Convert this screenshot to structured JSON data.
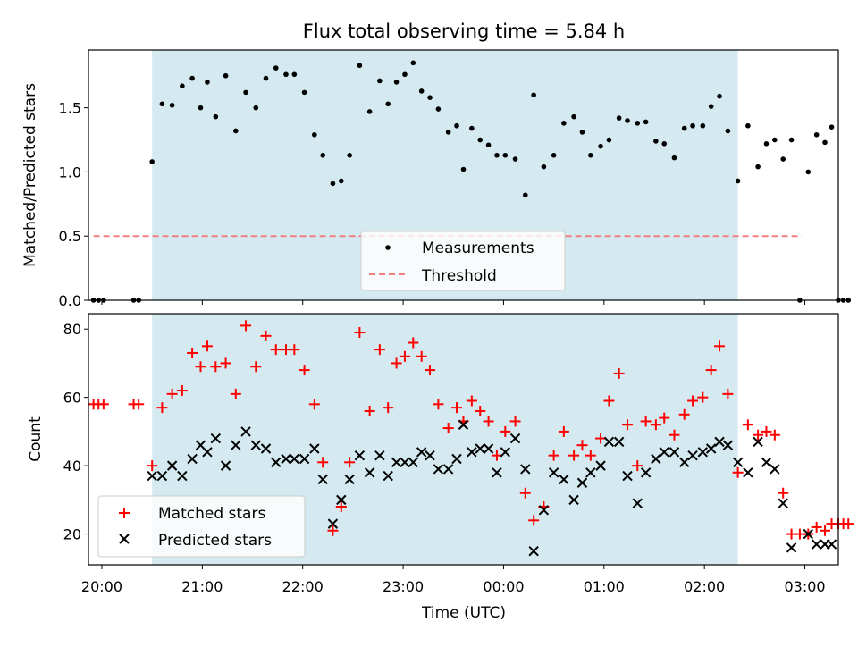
{
  "figure": {
    "title": "Flux total observing time = 5.84 h"
  },
  "chart_data": [
    {
      "type": "scatter",
      "panel": "top",
      "ylabel": "Matched/Predicted stars",
      "xlabel": "",
      "xlim": [
        "19:52",
        "03:20"
      ],
      "ylim": [
        0,
        1.95
      ],
      "yticks": [
        0.0,
        0.5,
        1.0,
        1.5
      ],
      "ytick_labels": [
        "0.0",
        "0.5",
        "1.0",
        "1.5"
      ],
      "shaded_interval": {
        "start": "20:30",
        "end": "02:20",
        "color": "#d4eaf0"
      },
      "legend": {
        "position": "lower center",
        "entries": [
          "Measurements",
          "Threshold"
        ]
      },
      "threshold": {
        "name": "Threshold",
        "y": 0.5,
        "x": [
          "19:55",
          "02:58"
        ],
        "color": "#f08080",
        "style": "dashed"
      },
      "series": [
        {
          "name": "Measurements",
          "marker": "dot",
          "color": "#000000",
          "points": [
            [
              "19:55",
              0
            ],
            [
              "19:58",
              0
            ],
            [
              "20:01",
              0
            ],
            [
              "20:19",
              0
            ],
            [
              "20:22",
              0
            ],
            [
              "20:30",
              1.08
            ],
            [
              "20:36",
              1.53
            ],
            [
              "20:42",
              1.52
            ],
            [
              "20:48",
              1.67
            ],
            [
              "20:54",
              1.73
            ],
            [
              "20:59",
              1.5
            ],
            [
              "21:03",
              1.7
            ],
            [
              "21:08",
              1.43
            ],
            [
              "21:14",
              1.75
            ],
            [
              "21:20",
              1.32
            ],
            [
              "21:26",
              1.62
            ],
            [
              "21:32",
              1.5
            ],
            [
              "21:38",
              1.73
            ],
            [
              "21:44",
              1.81
            ],
            [
              "21:50",
              1.76
            ],
            [
              "21:55",
              1.76
            ],
            [
              "22:01",
              1.62
            ],
            [
              "22:07",
              1.29
            ],
            [
              "22:12",
              1.13
            ],
            [
              "22:18",
              0.91
            ],
            [
              "22:23",
              0.93
            ],
            [
              "22:28",
              1.13
            ],
            [
              "22:34",
              1.83
            ],
            [
              "22:40",
              1.47
            ],
            [
              "22:46",
              1.71
            ],
            [
              "22:51",
              1.53
            ],
            [
              "22:56",
              1.7
            ],
            [
              "23:01",
              1.76
            ],
            [
              "23:06",
              1.85
            ],
            [
              "23:11",
              1.63
            ],
            [
              "23:16",
              1.58
            ],
            [
              "23:21",
              1.49
            ],
            [
              "23:27",
              1.31
            ],
            [
              "23:32",
              1.36
            ],
            [
              "23:36",
              1.02
            ],
            [
              "23:41",
              1.34
            ],
            [
              "23:46",
              1.25
            ],
            [
              "23:51",
              1.21
            ],
            [
              "23:56",
              1.13
            ],
            [
              "00:01",
              1.13
            ],
            [
              "00:07",
              1.1
            ],
            [
              "00:13",
              0.82
            ],
            [
              "00:18",
              1.6
            ],
            [
              "00:24",
              1.04
            ],
            [
              "00:30",
              1.13
            ],
            [
              "00:36",
              1.38
            ],
            [
              "00:42",
              1.43
            ],
            [
              "00:47",
              1.31
            ],
            [
              "00:52",
              1.13
            ],
            [
              "00:58",
              1.2
            ],
            [
              "01:03",
              1.25
            ],
            [
              "01:09",
              1.42
            ],
            [
              "01:14",
              1.4
            ],
            [
              "01:20",
              1.38
            ],
            [
              "01:25",
              1.39
            ],
            [
              "01:31",
              1.24
            ],
            [
              "01:36",
              1.22
            ],
            [
              "01:42",
              1.11
            ],
            [
              "01:48",
              1.34
            ],
            [
              "01:53",
              1.36
            ],
            [
              "01:59",
              1.36
            ],
            [
              "02:04",
              1.51
            ],
            [
              "02:09",
              1.59
            ],
            [
              "02:14",
              1.32
            ],
            [
              "02:20",
              0.93
            ],
            [
              "02:26",
              1.36
            ],
            [
              "02:32",
              1.04
            ],
            [
              "02:37",
              1.22
            ],
            [
              "02:42",
              1.25
            ],
            [
              "02:47",
              1.1
            ],
            [
              "02:52",
              1.25
            ],
            [
              "02:57",
              0
            ],
            [
              "03:02",
              1.0
            ],
            [
              "03:07",
              1.29
            ],
            [
              "03:12",
              1.23
            ],
            [
              "03:16",
              1.35
            ],
            [
              "03:20",
              0
            ],
            [
              "03:23",
              0
            ],
            [
              "03:26",
              0
            ]
          ]
        }
      ]
    },
    {
      "type": "scatter",
      "panel": "bottom",
      "ylabel": "Count",
      "xlabel": "Time (UTC)",
      "xlim": [
        "19:52",
        "03:20"
      ],
      "ylim": [
        11,
        84.5
      ],
      "yticks": [
        20,
        40,
        60,
        80
      ],
      "ytick_labels": [
        "20",
        "40",
        "60",
        "80"
      ],
      "xticks": [
        "20:00",
        "21:00",
        "22:00",
        "23:00",
        "00:00",
        "01:00",
        "02:00",
        "03:00"
      ],
      "shaded_interval": {
        "start": "20:30",
        "end": "02:20",
        "color": "#d4eaf0"
      },
      "legend": {
        "position": "lower left",
        "entries": [
          "Matched stars",
          "Predicted stars"
        ]
      },
      "series": [
        {
          "name": "Matched stars",
          "marker": "plus",
          "color": "#ff0000",
          "points": [
            [
              "19:55",
              58
            ],
            [
              "19:58",
              58
            ],
            [
              "20:01",
              58
            ],
            [
              "20:19",
              58
            ],
            [
              "20:22",
              58
            ],
            [
              "20:30",
              40
            ],
            [
              "20:36",
              57
            ],
            [
              "20:42",
              61
            ],
            [
              "20:48",
              62
            ],
            [
              "20:54",
              73
            ],
            [
              "20:59",
              69
            ],
            [
              "21:03",
              75
            ],
            [
              "21:08",
              69
            ],
            [
              "21:14",
              70
            ],
            [
              "21:20",
              61
            ],
            [
              "21:26",
              81
            ],
            [
              "21:32",
              69
            ],
            [
              "21:38",
              78
            ],
            [
              "21:44",
              74
            ],
            [
              "21:50",
              74
            ],
            [
              "21:55",
              74
            ],
            [
              "22:01",
              68
            ],
            [
              "22:07",
              58
            ],
            [
              "22:12",
              41
            ],
            [
              "22:18",
              21
            ],
            [
              "22:23",
              28
            ],
            [
              "22:28",
              41
            ],
            [
              "22:34",
              79
            ],
            [
              "22:40",
              56
            ],
            [
              "22:46",
              74
            ],
            [
              "22:51",
              57
            ],
            [
              "22:56",
              70
            ],
            [
              "23:01",
              72
            ],
            [
              "23:06",
              76
            ],
            [
              "23:11",
              72
            ],
            [
              "23:16",
              68
            ],
            [
              "23:21",
              58
            ],
            [
              "23:27",
              51
            ],
            [
              "23:32",
              57
            ],
            [
              "23:36",
              53
            ],
            [
              "23:41",
              59
            ],
            [
              "23:46",
              56
            ],
            [
              "23:51",
              53
            ],
            [
              "23:56",
              43
            ],
            [
              "00:01",
              50
            ],
            [
              "00:07",
              53
            ],
            [
              "00:13",
              32
            ],
            [
              "00:18",
              24
            ],
            [
              "00:24",
              28
            ],
            [
              "00:30",
              43
            ],
            [
              "00:36",
              50
            ],
            [
              "00:42",
              43
            ],
            [
              "00:47",
              46
            ],
            [
              "00:52",
              43
            ],
            [
              "00:58",
              48
            ],
            [
              "01:03",
              59
            ],
            [
              "01:09",
              67
            ],
            [
              "01:14",
              52
            ],
            [
              "01:20",
              40
            ],
            [
              "01:25",
              53
            ],
            [
              "01:31",
              52
            ],
            [
              "01:36",
              54
            ],
            [
              "01:42",
              49
            ],
            [
              "01:48",
              55
            ],
            [
              "01:53",
              59
            ],
            [
              "01:59",
              60
            ],
            [
              "02:04",
              68
            ],
            [
              "02:09",
              75
            ],
            [
              "02:14",
              61
            ],
            [
              "02:20",
              38
            ],
            [
              "02:26",
              52
            ],
            [
              "02:32",
              49
            ],
            [
              "02:37",
              50
            ],
            [
              "02:42",
              49
            ],
            [
              "02:47",
              32
            ],
            [
              "02:52",
              20
            ],
            [
              "02:57",
              20
            ],
            [
              "03:02",
              20
            ],
            [
              "03:07",
              22
            ],
            [
              "03:12",
              21
            ],
            [
              "03:16",
              23
            ],
            [
              "03:20",
              23
            ],
            [
              "03:23",
              23
            ],
            [
              "03:26",
              23
            ]
          ]
        },
        {
          "name": "Predicted stars",
          "marker": "x",
          "color": "#000000",
          "points": [
            [
              "20:30",
              37
            ],
            [
              "20:36",
              37
            ],
            [
              "20:42",
              40
            ],
            [
              "20:48",
              37
            ],
            [
              "20:54",
              42
            ],
            [
              "20:59",
              46
            ],
            [
              "21:03",
              44
            ],
            [
              "21:08",
              48
            ],
            [
              "21:14",
              40
            ],
            [
              "21:20",
              46
            ],
            [
              "21:26",
              50
            ],
            [
              "21:32",
              46
            ],
            [
              "21:38",
              45
            ],
            [
              "21:44",
              41
            ],
            [
              "21:50",
              42
            ],
            [
              "21:55",
              42
            ],
            [
              "22:01",
              42
            ],
            [
              "22:07",
              45
            ],
            [
              "22:12",
              36
            ],
            [
              "22:18",
              23
            ],
            [
              "22:23",
              30
            ],
            [
              "22:28",
              36
            ],
            [
              "22:34",
              43
            ],
            [
              "22:40",
              38
            ],
            [
              "22:46",
              43
            ],
            [
              "22:51",
              37
            ],
            [
              "22:56",
              41
            ],
            [
              "23:01",
              41
            ],
            [
              "23:06",
              41
            ],
            [
              "23:11",
              44
            ],
            [
              "23:16",
              43
            ],
            [
              "23:21",
              39
            ],
            [
              "23:27",
              39
            ],
            [
              "23:32",
              42
            ],
            [
              "23:36",
              52
            ],
            [
              "23:41",
              44
            ],
            [
              "23:46",
              45
            ],
            [
              "23:51",
              45
            ],
            [
              "23:56",
              38
            ],
            [
              "00:01",
              44
            ],
            [
              "00:07",
              48
            ],
            [
              "00:13",
              39
            ],
            [
              "00:18",
              15
            ],
            [
              "00:24",
              27
            ],
            [
              "00:30",
              38
            ],
            [
              "00:36",
              36
            ],
            [
              "00:42",
              30
            ],
            [
              "00:47",
              35
            ],
            [
              "00:52",
              38
            ],
            [
              "00:58",
              40
            ],
            [
              "01:03",
              47
            ],
            [
              "01:09",
              47
            ],
            [
              "01:14",
              37
            ],
            [
              "01:20",
              29
            ],
            [
              "01:25",
              38
            ],
            [
              "01:31",
              42
            ],
            [
              "01:36",
              44
            ],
            [
              "01:42",
              44
            ],
            [
              "01:48",
              41
            ],
            [
              "01:53",
              43
            ],
            [
              "01:59",
              44
            ],
            [
              "02:04",
              45
            ],
            [
              "02:09",
              47
            ],
            [
              "02:14",
              46
            ],
            [
              "02:20",
              41
            ],
            [
              "02:26",
              38
            ],
            [
              "02:32",
              47
            ],
            [
              "02:37",
              41
            ],
            [
              "02:42",
              39
            ],
            [
              "02:47",
              29
            ],
            [
              "02:52",
              16
            ],
            [
              "03:02",
              20
            ],
            [
              "03:07",
              17
            ],
            [
              "03:12",
              17
            ],
            [
              "03:16",
              17
            ]
          ]
        }
      ]
    }
  ]
}
